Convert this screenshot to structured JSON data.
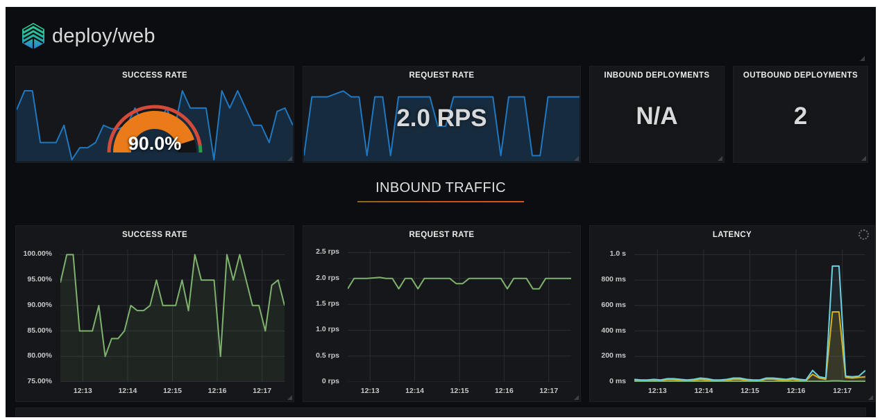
{
  "header": {
    "title": "deploy/web"
  },
  "stat_row": {
    "success": {
      "title": "SUCCESS RATE",
      "value": "90.0%"
    },
    "request": {
      "title": "REQUEST RATE",
      "value": "2.0 RPS"
    },
    "inbound": {
      "title": "INBOUND DEPLOYMENTS",
      "value": "N/A"
    },
    "outbound": {
      "title": "OUTBOUND DEPLOYMENTS",
      "value": "2"
    }
  },
  "gauge": {
    "percent": 90,
    "threshold_green_start_deg": 171
  },
  "section": {
    "title": "INBOUND TRAFFIC"
  },
  "colors": {
    "blue_line": "#1f78c1",
    "blue_fill": "rgba(31,120,193,0.22)",
    "green_line": "#7eb26d",
    "green_fill": "rgba(126,178,109,0.10)",
    "cyan_line": "#6ed0e0",
    "cyan_fill": "rgba(110,208,224,0.08)",
    "yellow_line": "#e2b10e",
    "yellow_fill": "rgba(226,177,14,0.14)",
    "gauge_value": "#eb7b18",
    "gauge_rest": "#111317",
    "threshold_red": "#d44a3a",
    "threshold_green": "#299c46",
    "grid": "#2b2d33"
  },
  "chart_data": [
    {
      "id": "stat-success-spark",
      "type": "area",
      "title": "SUCCESS RATE",
      "ylim": [
        79.5,
        100.8
      ],
      "axes": false,
      "series": [
        {
          "name": "success-rate-sparkline",
          "color": "#1f78c1",
          "fill": "rgba(31,120,193,0.22)",
          "width": 2,
          "values": [
            94.5,
            100,
            100,
            85,
            85,
            85,
            90,
            80,
            83.5,
            83.5,
            85,
            90,
            89,
            89,
            90,
            95,
            90,
            90,
            90,
            95,
            89,
            100,
            95,
            95,
            95,
            80,
            100,
            95,
            100,
            95,
            90,
            90,
            85,
            94,
            95,
            90
          ]
        }
      ]
    },
    {
      "id": "stat-request-spark",
      "type": "area",
      "title": "REQUEST RATE",
      "ylim": [
        1.78,
        2.03
      ],
      "axes": false,
      "series": [
        {
          "name": "request-rate-sparkline",
          "color": "#1f78c1",
          "fill": "rgba(31,120,193,0.22)",
          "width": 2,
          "values": [
            1.8,
            2.0,
            2.0,
            2.0,
            2.01,
            2.02,
            2.0,
            2.0,
            1.8,
            2.0,
            2.0,
            1.8,
            2.0,
            2.0,
            2.0,
            2.0,
            2.0,
            1.9,
            1.9,
            2.0,
            2.0,
            2.0,
            2.0,
            2.0,
            2.0,
            1.8,
            2.0,
            2.0,
            2.0,
            1.8,
            1.8,
            2.0,
            2.0,
            2.0,
            2.0,
            2.0
          ]
        }
      ]
    },
    {
      "id": "inbound-success",
      "type": "line",
      "title": "SUCCESS RATE",
      "ylim": [
        75,
        101
      ],
      "grid": true,
      "legend": "none",
      "yticks": [
        {
          "label": "100.00%",
          "value": 100
        },
        {
          "label": "95.00%",
          "value": 95
        },
        {
          "label": "90.00%",
          "value": 90
        },
        {
          "label": "85.00%",
          "value": 85
        },
        {
          "label": "80.00%",
          "value": 80
        },
        {
          "label": "75.00%",
          "value": 75
        }
      ],
      "xticks": [
        {
          "label": "12:13",
          "f": 0.1
        },
        {
          "label": "12:14",
          "f": 0.3
        },
        {
          "label": "12:15",
          "f": 0.5
        },
        {
          "label": "12:16",
          "f": 0.7
        },
        {
          "label": "12:17",
          "f": 0.9
        }
      ],
      "series": [
        {
          "name": "success-rate",
          "color": "#7eb26d",
          "fill": "rgba(126,178,109,0.10)",
          "width": 2,
          "values": [
            94.5,
            100,
            100,
            85,
            85,
            85,
            90,
            80,
            83.5,
            83.5,
            85,
            90,
            89,
            89,
            90,
            95,
            90,
            90,
            90,
            95,
            89,
            100,
            95,
            95,
            95,
            80,
            100,
            95,
            100,
            95,
            90,
            90,
            85,
            94,
            95,
            90
          ]
        }
      ]
    },
    {
      "id": "inbound-request",
      "type": "line",
      "title": "REQUEST RATE",
      "ylim": [
        0,
        2.56
      ],
      "grid": true,
      "legend": "none",
      "yticks": [
        {
          "label": "2.5 rps",
          "value": 2.5
        },
        {
          "label": "2.0 rps",
          "value": 2.0
        },
        {
          "label": "1.5 rps",
          "value": 1.5
        },
        {
          "label": "1.0 rps",
          "value": 1.0
        },
        {
          "label": "0.5 rps",
          "value": 0.5
        },
        {
          "label": "0 rps",
          "value": 0
        }
      ],
      "xticks": [
        {
          "label": "12:13",
          "f": 0.1
        },
        {
          "label": "12:14",
          "f": 0.3
        },
        {
          "label": "12:15",
          "f": 0.5
        },
        {
          "label": "12:16",
          "f": 0.7
        },
        {
          "label": "12:17",
          "f": 0.9
        }
      ],
      "series": [
        {
          "name": "request-rate",
          "color": "#7eb26d",
          "fill": null,
          "width": 2,
          "values": [
            1.8,
            2.0,
            2.0,
            2.0,
            2.01,
            2.02,
            2.0,
            2.0,
            1.8,
            2.0,
            2.0,
            1.8,
            2.0,
            2.0,
            2.0,
            2.0,
            2.0,
            1.9,
            1.9,
            2.0,
            2.0,
            2.0,
            2.0,
            2.0,
            2.0,
            1.8,
            2.0,
            2.0,
            2.0,
            1.8,
            1.8,
            2.0,
            2.0,
            2.0,
            2.0,
            2.0
          ]
        }
      ]
    },
    {
      "id": "inbound-latency",
      "type": "line",
      "title": "LATENCY",
      "ylim": [
        0,
        1040
      ],
      "grid": true,
      "legend": "none",
      "yticks": [
        {
          "label": "1.0 s",
          "value": 1000
        },
        {
          "label": "800 ms",
          "value": 800
        },
        {
          "label": "600 ms",
          "value": 600
        },
        {
          "label": "400 ms",
          "value": 400
        },
        {
          "label": "200 ms",
          "value": 200
        },
        {
          "label": "0 ms",
          "value": 0
        }
      ],
      "xticks": [
        {
          "label": "12:13",
          "f": 0.1
        },
        {
          "label": "12:14",
          "f": 0.3
        },
        {
          "label": "12:15",
          "f": 0.5
        },
        {
          "label": "12:16",
          "f": 0.7
        },
        {
          "label": "12:17",
          "f": 0.9
        }
      ],
      "series": [
        {
          "name": "latency-yellow",
          "color": "#e2b10e",
          "fill": "rgba(226,177,14,0.14)",
          "width": 2,
          "values": [
            12,
            10,
            10,
            12,
            10,
            18,
            18,
            12,
            10,
            12,
            20,
            15,
            10,
            10,
            12,
            20,
            20,
            12,
            10,
            10,
            22,
            22,
            15,
            12,
            20,
            12,
            10,
            60,
            30,
            20,
            550,
            550,
            35,
            30,
            35,
            40
          ]
        },
        {
          "name": "latency-green",
          "color": "#7eb26d",
          "fill": null,
          "width": 2,
          "values": [
            5,
            5,
            5,
            5,
            5,
            5,
            5,
            5,
            5,
            5,
            5,
            5,
            5,
            5,
            5,
            5,
            5,
            5,
            5,
            5,
            5,
            5,
            5,
            5,
            5,
            5,
            5,
            5,
            5,
            5,
            8,
            8,
            5,
            5,
            5,
            5
          ]
        },
        {
          "name": "latency-cyan",
          "color": "#6ed0e0",
          "fill": "rgba(110,208,224,0.08)",
          "width": 2,
          "values": [
            20,
            15,
            15,
            20,
            15,
            25,
            25,
            20,
            15,
            20,
            30,
            25,
            15,
            15,
            20,
            30,
            30,
            20,
            15,
            15,
            30,
            30,
            25,
            20,
            30,
            20,
            15,
            90,
            40,
            30,
            910,
            910,
            45,
            40,
            45,
            90
          ]
        }
      ]
    }
  ]
}
